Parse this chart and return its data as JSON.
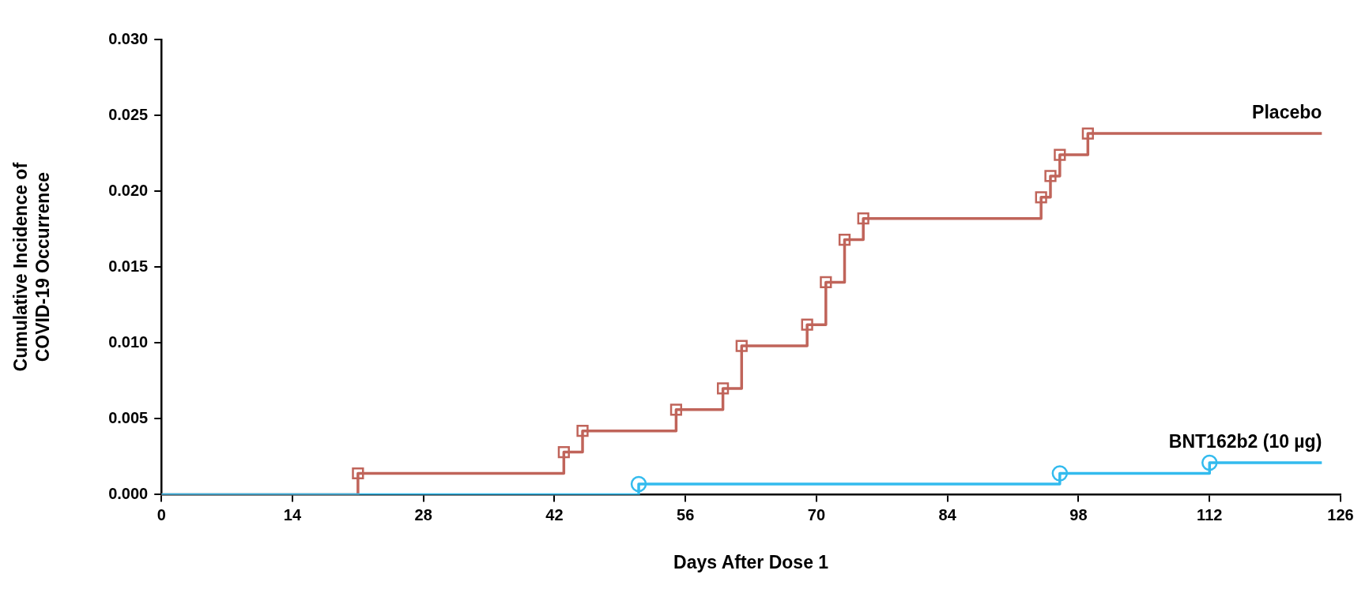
{
  "chart_data": {
    "type": "step",
    "xlabel": "Days After Dose 1",
    "ylabel": "Cumulative Incidence of\nCOVID-19 Occurrence",
    "xlim": [
      0,
      126
    ],
    "xticks": [
      0,
      14,
      28,
      42,
      56,
      70,
      84,
      98,
      112,
      126
    ],
    "ylim": [
      0,
      0.03
    ],
    "yticks": [
      {
        "value": 0,
        "label": "0.000"
      },
      {
        "value": 0.005,
        "label": "0.005"
      },
      {
        "value": 0.01,
        "label": "0.010"
      },
      {
        "value": 0.015,
        "label": "0.015"
      },
      {
        "value": 0.02,
        "label": "0.020"
      },
      {
        "value": 0.025,
        "label": "0.025"
      },
      {
        "value": 0.03,
        "label": "0.030"
      }
    ],
    "grid": false,
    "legend": false,
    "series": [
      {
        "name": "Placebo",
        "color": "#c0645a",
        "marker": "square",
        "x": [
          0,
          21,
          43,
          45,
          55,
          60,
          62,
          69,
          71,
          73,
          75,
          94,
          95,
          96,
          99,
          124
        ],
        "values": [
          0,
          0.0014,
          0.0028,
          0.0042,
          0.0056,
          0.007,
          0.0098,
          0.0112,
          0.014,
          0.0168,
          0.0182,
          0.0196,
          0.021,
          0.0224,
          0.0238,
          0.0238
        ]
      },
      {
        "name": "BNT162b2 (10 µg)",
        "color": "#33bbee",
        "marker": "circle",
        "x": [
          0,
          51,
          96,
          112,
          124
        ],
        "values": [
          0,
          0.0007,
          0.0014,
          0.0021,
          0.0021
        ]
      }
    ]
  }
}
